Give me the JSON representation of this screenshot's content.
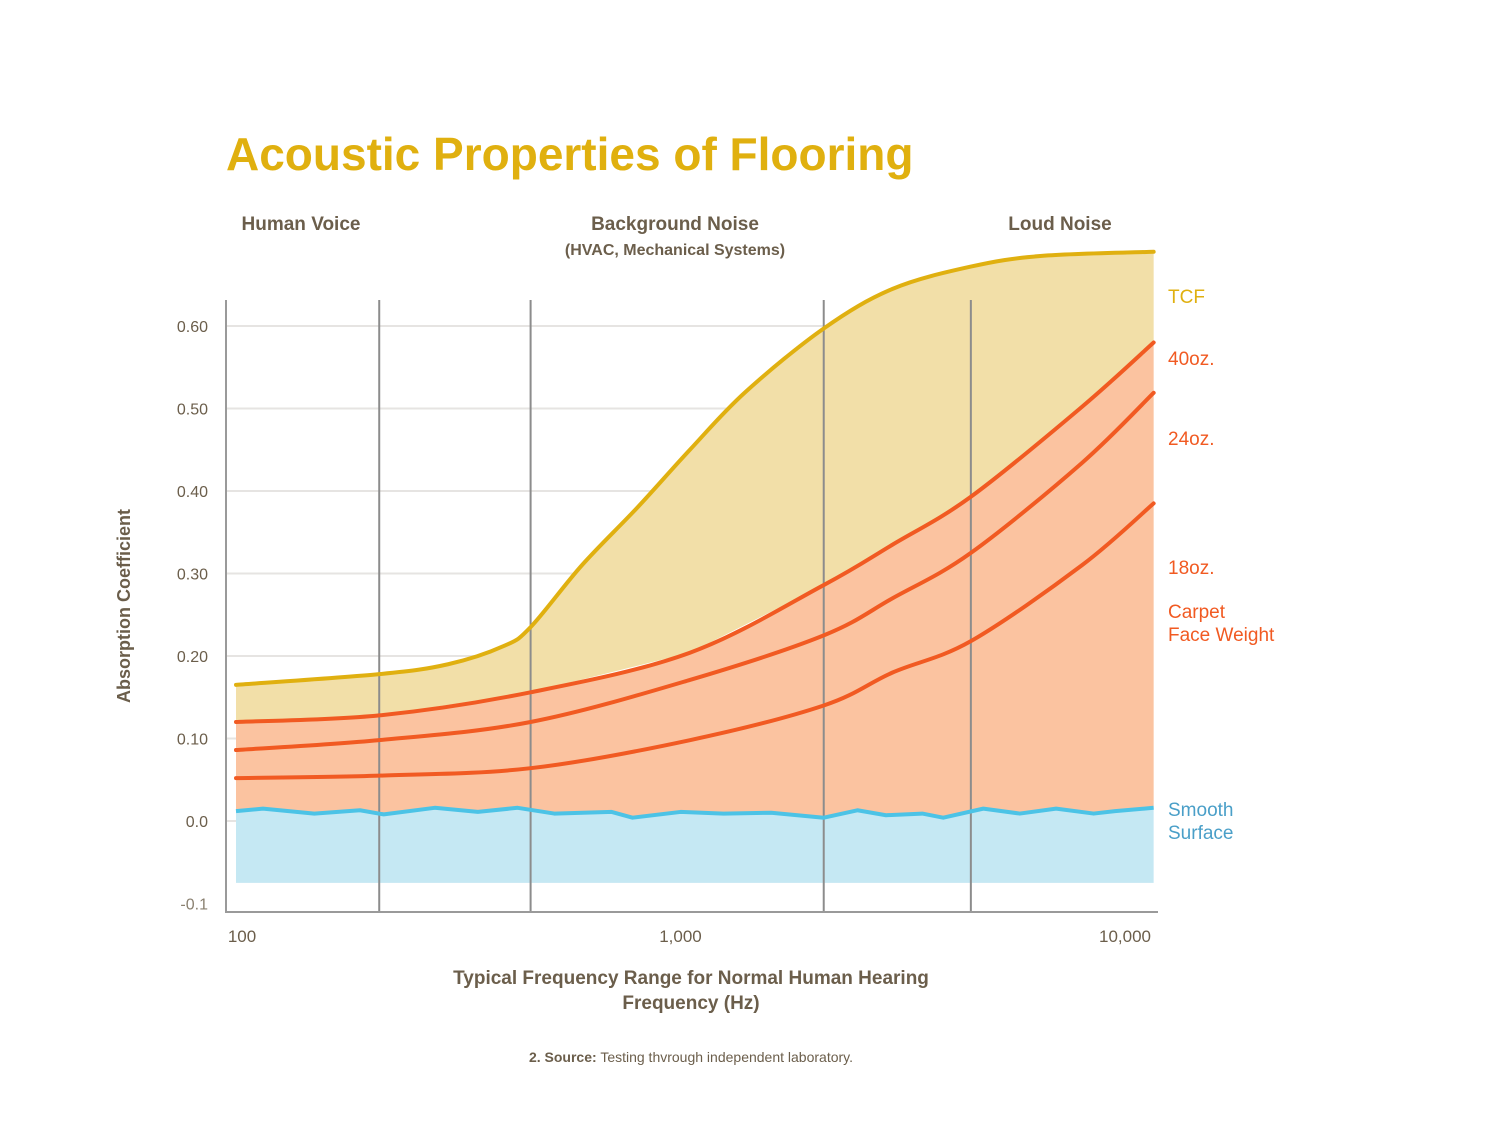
{
  "chart_data": {
    "type": "area",
    "title": "Acoustic Properties of Flooring",
    "xlabel": "Typical Frequency Range for Normal Human Hearing",
    "xlabel_sub": "Frequency (Hz)",
    "ylabel": "Absorption Coefficient",
    "x_scale": "log",
    "xlim": [
      100,
      11600
    ],
    "ylim": [
      -0.1,
      0.69
    ],
    "x_ticks": [
      {
        "value": 100,
        "label": "100"
      },
      {
        "value": 1000,
        "label": "1,000"
      },
      {
        "value": 10000,
        "label": "10,000"
      }
    ],
    "y_ticks": [
      {
        "value": 0.6,
        "label": "0.60"
      },
      {
        "value": 0.5,
        "label": "0.50"
      },
      {
        "value": 0.4,
        "label": "0.40"
      },
      {
        "value": 0.3,
        "label": "0.30"
      },
      {
        "value": 0.2,
        "label": "0.20"
      },
      {
        "value": 0.1,
        "label": "0.10"
      },
      {
        "value": 0.0,
        "label": "0.0"
      },
      {
        "value": -0.1,
        "label": "-0.1"
      }
    ],
    "grid": true,
    "bands": [
      {
        "label": "Human Voice",
        "sublabel": "",
        "center": 180
      },
      {
        "label": "Background Noise",
        "sublabel": "(HVAC, Mechanical Systems)",
        "center": 1000
      },
      {
        "label": "Loud Noise",
        "sublabel": "",
        "center": 7000
      }
    ],
    "band_dividers": [
      210,
      460,
      2100,
      4500
    ],
    "series": [
      {
        "name": "TCF",
        "color": "#e0b010",
        "fill": "#f2dfa8",
        "x": [
          100,
          210,
          300,
          400,
          460,
          600,
          800,
          1050,
          1400,
          2100,
          3000,
          4500,
          6500,
          11600
        ],
        "y": [
          0.165,
          0.178,
          0.19,
          0.212,
          0.235,
          0.31,
          0.38,
          0.45,
          0.52,
          0.597,
          0.645,
          0.672,
          0.685,
          0.69
        ]
      },
      {
        "name": "40oz.",
        "color": "#f15a22",
        "fill": "#fbc3a0",
        "x": [
          100,
          210,
          460,
          1050,
          2100,
          3000,
          4500,
          8000,
          11600
        ],
        "y": [
          0.12,
          0.128,
          0.156,
          0.204,
          0.286,
          0.335,
          0.393,
          0.502,
          0.58
        ]
      },
      {
        "name": "24oz.",
        "color": "#f15a22",
        "x": [
          100,
          210,
          460,
          1050,
          2100,
          3000,
          4500,
          8000,
          11600
        ],
        "y": [
          0.086,
          0.098,
          0.12,
          0.171,
          0.225,
          0.27,
          0.325,
          0.434,
          0.519
        ]
      },
      {
        "name": "18oz.",
        "color": "#f15a22",
        "x": [
          100,
          210,
          460,
          1050,
          2100,
          3000,
          4500,
          8000,
          11600
        ],
        "y": [
          0.052,
          0.055,
          0.064,
          0.098,
          0.14,
          0.18,
          0.218,
          0.31,
          0.385
        ]
      },
      {
        "name": "Smooth Surface",
        "color": "#4cc3e6",
        "fill": "#c5e8f3",
        "fill_floor": -0.075,
        "x": [
          100,
          115,
          150,
          190,
          215,
          280,
          350,
          430,
          520,
          700,
          780,
          1000,
          1250,
          1600,
          2100,
          2500,
          2900,
          3500,
          3900,
          4800,
          5800,
          7000,
          8500,
          9500,
          11600
        ],
        "y": [
          0.012,
          0.015,
          0.009,
          0.013,
          0.008,
          0.016,
          0.011,
          0.016,
          0.009,
          0.011,
          0.004,
          0.011,
          0.009,
          0.01,
          0.004,
          0.013,
          0.007,
          0.009,
          0.004,
          0.015,
          0.009,
          0.015,
          0.009,
          0.012,
          0.016
        ]
      }
    ],
    "legend": {
      "placement": "right",
      "group_label": "Carpet Face Weight",
      "group_label_lines": [
        "Carpet",
        "Face Weight"
      ]
    },
    "footnote": {
      "number": "2.",
      "bold": "Source:",
      "text": "Testing thvrough independent laboratory."
    }
  }
}
